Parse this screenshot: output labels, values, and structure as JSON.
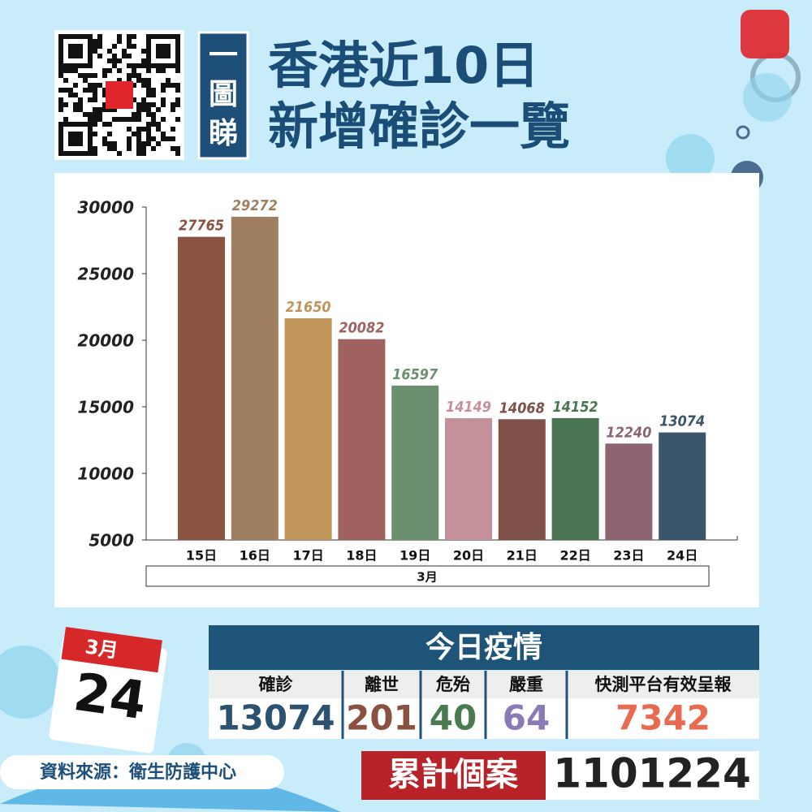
{
  "header": {
    "badge": "一圖睇",
    "title_line1": "香港近10日",
    "title_line2": "新增確診一覽"
  },
  "chart_data": {
    "type": "bar",
    "categories": [
      "15日",
      "16日",
      "17日",
      "18日",
      "19日",
      "20日",
      "21日",
      "22日",
      "23日",
      "24日"
    ],
    "values": [
      27765,
      29272,
      21650,
      20082,
      16597,
      14149,
      14068,
      14152,
      12240,
      13074
    ],
    "colors": [
      "#8b5340",
      "#a07e60",
      "#c0955a",
      "#a0625e",
      "#6a9070",
      "#c4909a",
      "#7e5048",
      "#4a7552",
      "#8e6470",
      "#3a566a"
    ],
    "xlabel": "3月",
    "ylim": [
      5000,
      30000
    ],
    "yticks": [
      5000,
      10000,
      15000,
      20000,
      25000,
      30000
    ]
  },
  "date": {
    "month": "3月",
    "day": "24"
  },
  "today": {
    "title": "今日疫情",
    "columns": [
      {
        "label": "確診",
        "value": "13074",
        "color": "#2d5270"
      },
      {
        "label": "離世",
        "value": "201",
        "color": "#8a5040"
      },
      {
        "label": "危殆",
        "value": "40",
        "color": "#4a7a50"
      },
      {
        "label": "嚴重",
        "value": "64",
        "color": "#8a7ab8"
      },
      {
        "label": "快測平台有效呈報",
        "value": "7342",
        "color": "#e86a50"
      }
    ]
  },
  "source": "資料來源：衛生防護中心",
  "cumulative": {
    "label": "累計個案",
    "value": "1101224"
  }
}
